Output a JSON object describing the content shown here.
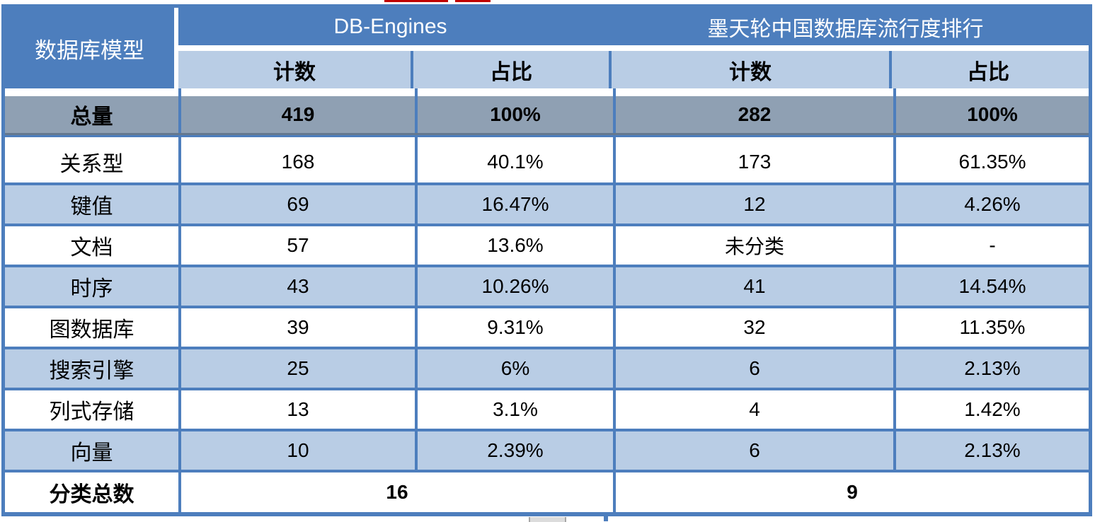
{
  "chart_data": {
    "type": "table",
    "corner_header": "数据库模型",
    "column_groups": [
      {
        "label": "DB-Engines",
        "columns": [
          "计数",
          "占比"
        ]
      },
      {
        "label": "墨天轮中国数据库流行度排行",
        "columns": [
          "计数",
          "占比"
        ]
      }
    ],
    "total_row": {
      "label": "总量",
      "values": [
        "419",
        "100%",
        "282",
        "100%"
      ]
    },
    "data_rows": [
      {
        "label": "关系型",
        "values": [
          "168",
          "40.1%",
          "173",
          "61.35%"
        ]
      },
      {
        "label": "键值",
        "values": [
          "69",
          "16.47%",
          "12",
          "4.26%"
        ]
      },
      {
        "label": "文档",
        "values": [
          "57",
          "13.6%",
          "未分类",
          "-"
        ]
      },
      {
        "label": "时序",
        "values": [
          "43",
          "10.26%",
          "41",
          "14.54%"
        ]
      },
      {
        "label": "图数据库",
        "values": [
          "39",
          "9.31%",
          "32",
          "11.35%"
        ]
      },
      {
        "label": "搜索引擎",
        "values": [
          "25",
          "6%",
          "6",
          "2.13%"
        ]
      },
      {
        "label": "列式存储",
        "values": [
          "13",
          "3.1%",
          "4",
          "1.42%"
        ]
      },
      {
        "label": "向量",
        "values": [
          "10",
          "2.39%",
          "6",
          "2.13%"
        ]
      }
    ],
    "summary_row": {
      "label": "分类总数",
      "values": [
        "16",
        "9"
      ]
    }
  },
  "colors": {
    "header_blue": "#4d7ebd",
    "band_light_blue": "#b9cde5",
    "total_row_gray": "#8fa0b3",
    "border_blue": "#4d7ebd",
    "artifact_red": "#c00000"
  }
}
